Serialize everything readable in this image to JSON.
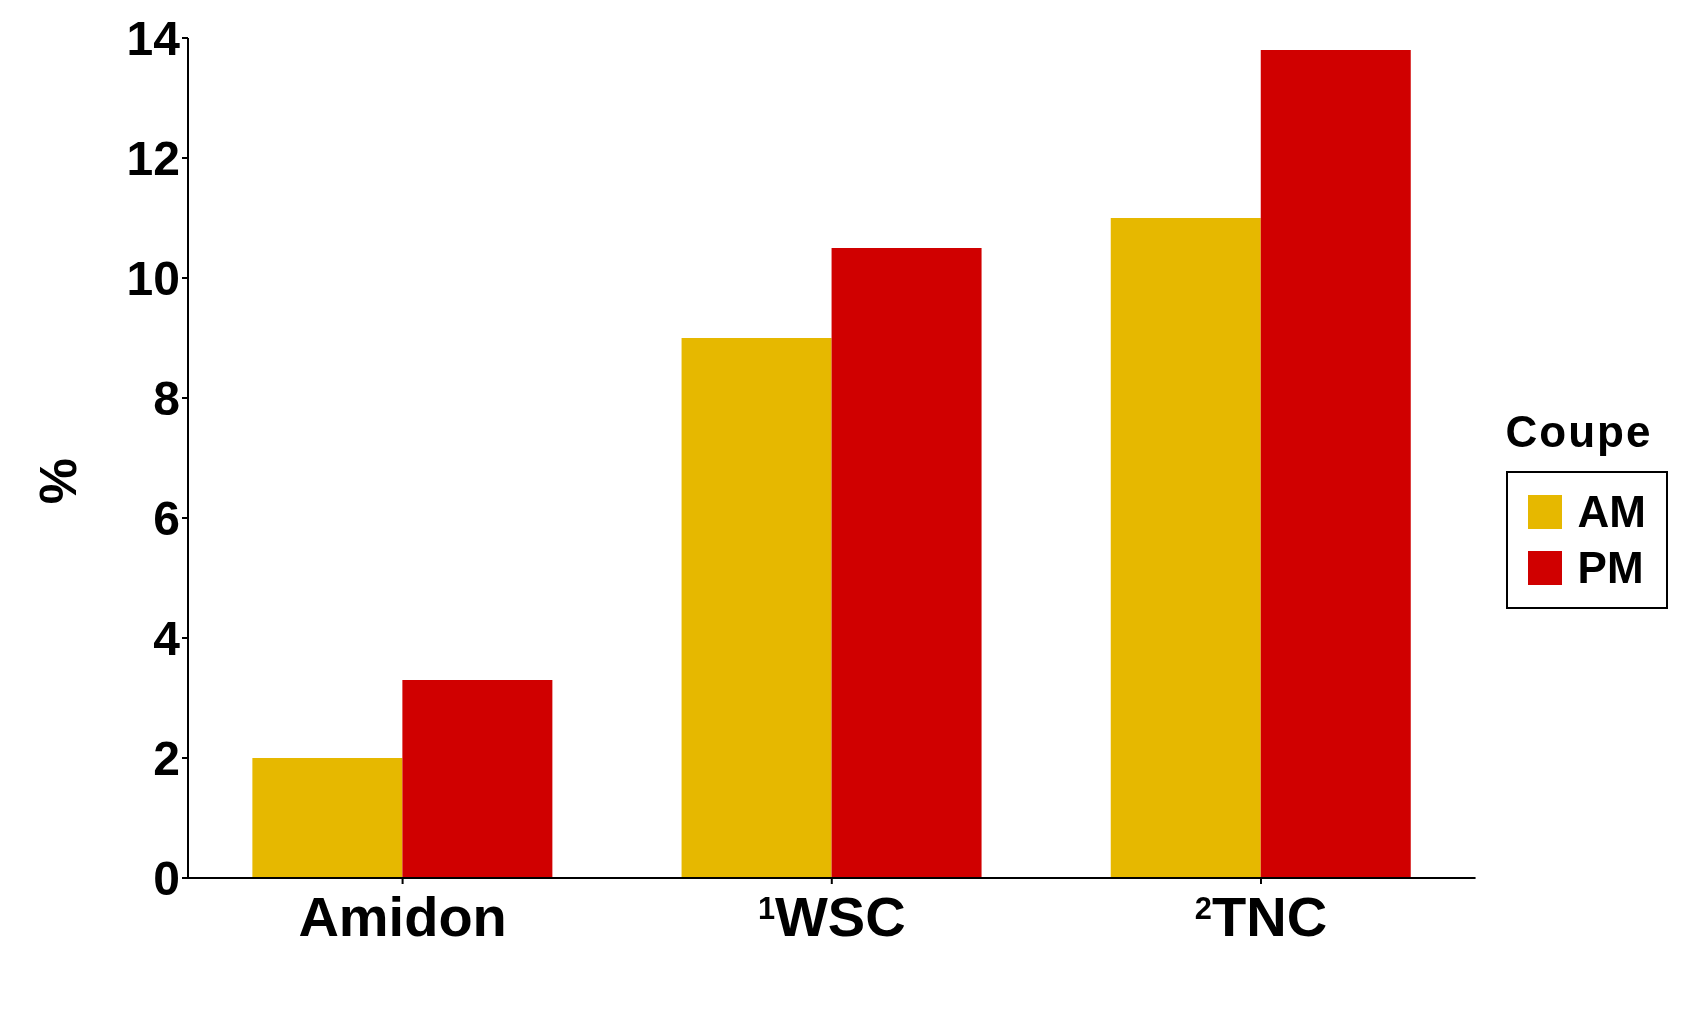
{
  "chart_data": {
    "type": "bar",
    "ylabel": "%",
    "legend_title": "Coupe",
    "categories": [
      "Amidon",
      "$^{1}$WSC",
      "$^{2}$TNC"
    ],
    "series": [
      {
        "name": "AM",
        "color": "#e6b800",
        "values": [
          2.0,
          9.0,
          11.0
        ]
      },
      {
        "name": "PM",
        "color": "#d00000",
        "values": [
          3.3,
          10.5,
          13.8
        ]
      }
    ],
    "ylim": [
      0,
      14
    ],
    "yticks": [
      0,
      2,
      4,
      6,
      8,
      10,
      12,
      14
    ],
    "grid": false,
    "legend": "right"
  }
}
